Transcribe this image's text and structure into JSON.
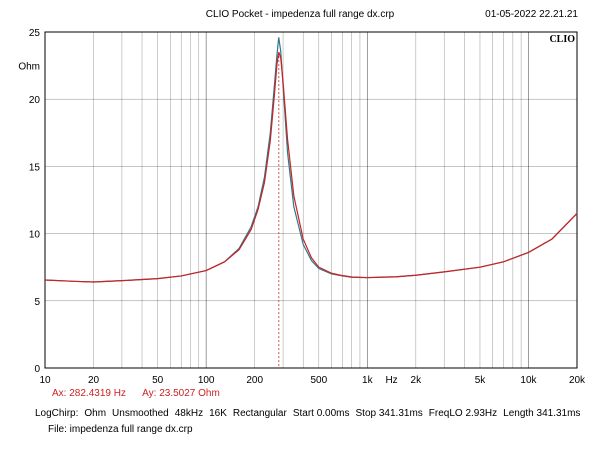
{
  "header": {
    "title": "CLIO Pocket - impedenza full range dx.crp",
    "timestamp": "01-05-2022 22.21.21",
    "brand": "CLIO"
  },
  "chart_data": {
    "type": "line",
    "xscale": "log",
    "xlim": [
      10,
      20000
    ],
    "ylim": [
      0,
      25
    ],
    "ylabel": "Ohm",
    "y_ticks": [
      0,
      5,
      10,
      15,
      20,
      25
    ],
    "x_tick_labels": [
      {
        "value": 10,
        "label": "10"
      },
      {
        "value": 20,
        "label": "20"
      },
      {
        "value": 50,
        "label": "50"
      },
      {
        "value": 100,
        "label": "100"
      },
      {
        "value": 200,
        "label": "200"
      },
      {
        "value": 500,
        "label": "500"
      },
      {
        "value": 1000,
        "label": "1k"
      },
      {
        "value": 2000,
        "label": "2k"
      },
      {
        "value": 5000,
        "label": "5k"
      },
      {
        "value": 10000,
        "label": "10k"
      },
      {
        "value": 20000,
        "label": "20k"
      }
    ],
    "x_unit_label": "Hz",
    "grid": true,
    "cursor_x": 282.4319,
    "series": [
      {
        "color": "#2a7a8c",
        "points": [
          [
            10,
            6.55
          ],
          [
            15,
            6.45
          ],
          [
            20,
            6.4
          ],
          [
            30,
            6.5
          ],
          [
            50,
            6.65
          ],
          [
            70,
            6.85
          ],
          [
            100,
            7.25
          ],
          [
            130,
            7.9
          ],
          [
            160,
            8.9
          ],
          [
            190,
            10.5
          ],
          [
            210,
            12.0
          ],
          [
            230,
            14.2
          ],
          [
            250,
            17.5
          ],
          [
            265,
            21.0
          ],
          [
            275,
            23.3
          ],
          [
            282,
            24.6
          ],
          [
            290,
            23.6
          ],
          [
            300,
            21.0
          ],
          [
            320,
            16.0
          ],
          [
            350,
            12.0
          ],
          [
            400,
            9.2
          ],
          [
            450,
            8.0
          ],
          [
            500,
            7.4
          ],
          [
            600,
            7.0
          ],
          [
            700,
            6.85
          ],
          [
            800,
            6.75
          ],
          [
            1000,
            6.72
          ],
          [
            1500,
            6.78
          ],
          [
            2000,
            6.9
          ],
          [
            3000,
            7.15
          ],
          [
            5000,
            7.5
          ],
          [
            7000,
            7.9
          ],
          [
            10000,
            8.6
          ],
          [
            14000,
            9.6
          ],
          [
            20000,
            11.5
          ]
        ]
      },
      {
        "color": "#cc2222",
        "points": [
          [
            10,
            6.55
          ],
          [
            15,
            6.45
          ],
          [
            20,
            6.4
          ],
          [
            30,
            6.5
          ],
          [
            50,
            6.65
          ],
          [
            70,
            6.85
          ],
          [
            100,
            7.25
          ],
          [
            130,
            7.9
          ],
          [
            160,
            8.8
          ],
          [
            190,
            10.3
          ],
          [
            210,
            11.8
          ],
          [
            230,
            13.8
          ],
          [
            250,
            16.9
          ],
          [
            265,
            20.3
          ],
          [
            275,
            22.6
          ],
          [
            282,
            23.5
          ],
          [
            290,
            23.1
          ],
          [
            300,
            21.3
          ],
          [
            320,
            17.0
          ],
          [
            350,
            12.8
          ],
          [
            400,
            9.6
          ],
          [
            450,
            8.2
          ],
          [
            500,
            7.5
          ],
          [
            600,
            7.05
          ],
          [
            700,
            6.88
          ],
          [
            800,
            6.77
          ],
          [
            1000,
            6.73
          ],
          [
            1500,
            6.79
          ],
          [
            2000,
            6.9
          ],
          [
            3000,
            7.15
          ],
          [
            5000,
            7.5
          ],
          [
            7000,
            7.9
          ],
          [
            10000,
            8.6
          ],
          [
            14000,
            9.6
          ],
          [
            20000,
            11.5
          ]
        ]
      }
    ]
  },
  "cursor": {
    "ax": "Ax: 282.4319 Hz",
    "ay": "Ay: 23.5027 Ohm"
  },
  "settings": {
    "items": [
      "LogChirp:",
      "Ohm",
      "Unsmoothed",
      "48kHz",
      "16K",
      "Rectangular",
      "Start 0.00ms",
      "Stop 341.31ms",
      "FreqLO 2.93Hz",
      "Length 341.31ms"
    ]
  },
  "file": {
    "label": "File: impedenza full range dx.crp"
  }
}
